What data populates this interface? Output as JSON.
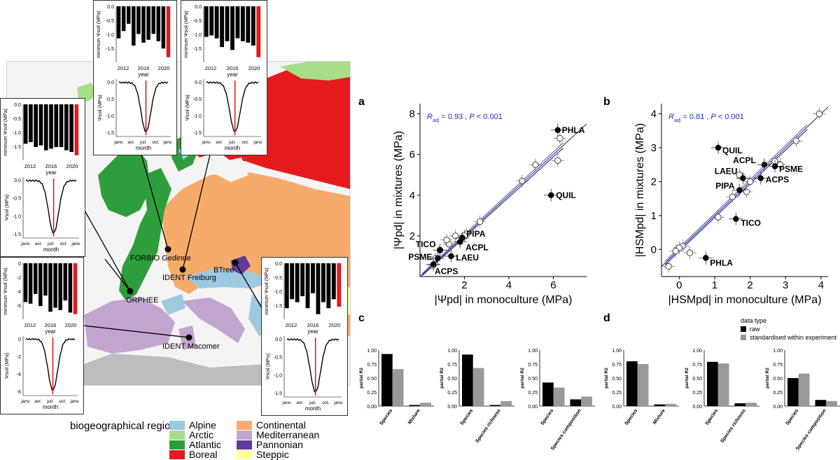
{
  "panels": {
    "a": "a",
    "b": "b",
    "c": "c",
    "d": "d"
  },
  "map": {
    "sites": [
      "ORPHEE",
      "FORBIO Gedinne",
      "IDENT Freiburg",
      "BTree",
      "IDENT Macomer"
    ],
    "legend_title": "biogeographical region",
    "regions": [
      {
        "name": "Alpine",
        "color": "#9ecae1"
      },
      {
        "name": "Arctic",
        "color": "#a8dd8a"
      },
      {
        "name": "Atlantic",
        "color": "#2e9e3c"
      },
      {
        "name": "Boreal",
        "color": "#e41a1c"
      },
      {
        "name": "Steppic",
        "color": "#ffff99"
      },
      {
        "name": "Continental",
        "color": "#f7ab6a"
      },
      {
        "name": "Mediterranean",
        "color": "#c2a5cf"
      },
      {
        "name": "Pannonian",
        "color": "#5e3c99"
      }
    ]
  },
  "insets": {
    "bar_ylabel": "minimum Ψsoil (MPa)",
    "bar_xlabel": "year",
    "line_ylabel": "Ψsoil (MPa)",
    "line_xlabel": "month",
    "years": [
      "2012",
      "2016",
      "2020"
    ],
    "months": [
      "janv.",
      "avr.",
      "juil.",
      "oct.",
      "janv."
    ],
    "items": [
      {
        "id": "gedinne",
        "bar_ticks": [
          "0.0",
          "-0.5",
          "-1.0",
          "-1.5"
        ],
        "bars": [
          -1.1,
          -0.85,
          -0.6,
          -1.35,
          -0.95,
          -1.25,
          -1.15,
          -0.95,
          -1.2,
          -1.45,
          -1.75
        ],
        "line_ticks": [
          "0.0",
          "-0.5",
          "-1.0",
          "-1.5"
        ],
        "line_min": -1.6,
        "line_max": 0.1
      },
      {
        "id": "freiburg",
        "bar_ticks": [
          "0.0",
          "-0.5",
          "-1.0",
          "-1.5"
        ],
        "bars": [
          -1.05,
          -1.0,
          -1.1,
          -1.4,
          -1.2,
          -1.5,
          -1.1,
          -1.2,
          -1.25,
          -1.35,
          -1.75
        ],
        "line_ticks": [
          "0.0",
          "-0.5",
          "-1.0",
          "-1.5"
        ],
        "line_min": -1.7,
        "line_max": 0.1
      },
      {
        "id": "orphee",
        "bar_ticks": [
          "0.0",
          "-0.5",
          "-1.0",
          "-1.5"
        ],
        "bars": [
          -1.2,
          -1.15,
          -1.3,
          -1.25,
          -1.4,
          -1.35,
          -1.3,
          -1.3,
          -1.4,
          -1.45,
          -1.55
        ],
        "line_ticks": [
          "0.0",
          "-0.5",
          "-1.0",
          "-1.5"
        ],
        "line_min": -1.6,
        "line_max": 0.1
      },
      {
        "id": "macomer",
        "bar_ticks": [
          "0",
          "-2",
          "-4",
          "-6"
        ],
        "bars": [
          -4.8,
          -5.0,
          -3.8,
          -5.3,
          -4.0,
          -6.0,
          -5.5,
          -5.8,
          -4.6,
          -6.1,
          -6.3
        ],
        "line_ticks": [
          "0",
          "-2",
          "-4",
          "-6"
        ],
        "line_min": -7,
        "line_max": 0.5
      },
      {
        "id": "btree",
        "bar_ticks": [
          "0.0",
          "-0.5",
          "-1.0",
          "-1.5"
        ],
        "bars": [
          -1.5,
          -1.2,
          -1.3,
          -1.1,
          -1.5,
          -1.0,
          -1.7,
          -1.3,
          -1.5,
          -1.2,
          -1.45
        ],
        "line_ticks": [
          "0.0",
          "-0.5",
          "-1.0",
          "-1.5"
        ],
        "line_min": -1.8,
        "line_max": 0.1
      }
    ]
  },
  "chart_data": [
    {
      "panel": "a",
      "type": "scatter",
      "xlabel": "|Ψpd| in monoculture (MPa)",
      "ylabel": "|Ψpd| in mixtures (MPa)",
      "xlim": [
        0,
        7.5
      ],
      "ylim": [
        0,
        8.5
      ],
      "xticks": [
        "2",
        "4",
        "6"
      ],
      "yticks": [
        "2",
        "4",
        "6",
        "8"
      ],
      "annotation_r2": "= 0.93 ,",
      "annotation_p": "< 0.001",
      "labeled_points": [
        {
          "label": "PHLA",
          "x": 6.2,
          "y": 7.2,
          "filled": true
        },
        {
          "label": "QUIL",
          "x": 5.9,
          "y": 4.0,
          "filled": true
        },
        {
          "label": "TICO",
          "x": 0.9,
          "y": 1.3,
          "filled": true
        },
        {
          "label": "PIPA",
          "x": 1.9,
          "y": 1.9,
          "filled": true
        },
        {
          "label": "ACPL",
          "x": 1.8,
          "y": 1.7,
          "filled": true
        },
        {
          "label": "PSME",
          "x": 0.8,
          "y": 0.9,
          "filled": true
        },
        {
          "label": "LAEU",
          "x": 1.4,
          "y": 1.0,
          "filled": true
        },
        {
          "label": "ACPS",
          "x": 0.6,
          "y": 0.6,
          "filled": true
        }
      ],
      "open_points": [
        [
          6.3,
          6.8
        ],
        [
          6.2,
          5.7
        ],
        [
          5.2,
          5.5
        ],
        [
          4.6,
          4.7
        ],
        [
          2.7,
          2.7
        ],
        [
          2.1,
          2.1
        ],
        [
          2.0,
          2.0
        ],
        [
          1.9,
          1.9
        ],
        [
          1.6,
          2.0
        ],
        [
          1.3,
          1.6
        ],
        [
          1.2,
          1.8
        ],
        [
          0.9,
          1.3
        ],
        [
          0.7,
          0.9
        ],
        [
          0.6,
          0.55
        ]
      ]
    },
    {
      "panel": "b",
      "type": "scatter",
      "xlabel": "|HSMpd| in monoculture (MPa)",
      "ylabel": "|HSMpd| in mixtures (MPa)",
      "xlim": [
        -0.5,
        4.2
      ],
      "ylim": [
        -0.8,
        4.3
      ],
      "xticks": [
        "0",
        "1",
        "2",
        "3",
        "4"
      ],
      "yticks": [
        "0",
        "1",
        "2",
        "3",
        "4"
      ],
      "annotation_r2": "= 0.81 ,",
      "annotation_p": "< 0.001",
      "labeled_points": [
        {
          "label": "QUIL",
          "x": 1.1,
          "y": 3.0,
          "filled": true
        },
        {
          "label": "ACPL",
          "x": 2.4,
          "y": 2.5,
          "filled": true
        },
        {
          "label": "PSME",
          "x": 2.7,
          "y": 2.45,
          "filled": true
        },
        {
          "label": "LAEU",
          "x": 1.8,
          "y": 2.1,
          "filled": true
        },
        {
          "label": "ACPS",
          "x": 2.3,
          "y": 2.1,
          "filled": true
        },
        {
          "label": "PIPA",
          "x": 1.7,
          "y": 1.75,
          "filled": true
        },
        {
          "label": "TICO",
          "x": 1.6,
          "y": 0.9,
          "filled": true
        },
        {
          "label": "PHLA",
          "x": 0.75,
          "y": -0.25,
          "filled": true
        }
      ],
      "open_points": [
        [
          3.95,
          4.0
        ],
        [
          3.3,
          3.2
        ],
        [
          2.7,
          2.6
        ],
        [
          2.85,
          2.5
        ],
        [
          2.0,
          2.0
        ],
        [
          1.7,
          2.2
        ],
        [
          1.9,
          1.7
        ],
        [
          1.5,
          1.55
        ],
        [
          1.1,
          0.95
        ],
        [
          0.3,
          -0.1
        ],
        [
          0.1,
          0.1
        ],
        [
          0.0,
          0.05
        ],
        [
          -0.1,
          -0.05
        ],
        [
          -0.3,
          -0.5
        ]
      ]
    },
    {
      "panel": "c",
      "type": "bar",
      "ylabel": "partial R2",
      "legend_title": "data type",
      "legend": [
        {
          "name": "raw",
          "color": "#000000"
        },
        {
          "name": "standardised within experiment",
          "color": "#999999"
        }
      ],
      "yticks": [
        "0.00",
        "0.25",
        "0.50",
        "0.75",
        "1.00"
      ],
      "subplots": [
        {
          "categories": [
            "Species",
            "Mixture"
          ],
          "raw": [
            0.93,
            0.02
          ],
          "std": [
            0.66,
            0.06
          ]
        },
        {
          "categories": [
            "Species",
            "Species richness"
          ],
          "raw": [
            0.92,
            0.02
          ],
          "std": [
            0.68,
            0.09
          ]
        },
        {
          "categories": [
            "Species",
            "Species composition"
          ],
          "raw": [
            0.42,
            0.12
          ],
          "std": [
            0.33,
            0.17
          ]
        }
      ]
    },
    {
      "panel": "d",
      "type": "bar",
      "ylabel": "partial R2",
      "yticks": [
        "0.00",
        "0.25",
        "0.50",
        "0.75",
        "1.00"
      ],
      "subplots": [
        {
          "categories": [
            "Species",
            "Mixture"
          ],
          "raw": [
            0.8,
            0.03
          ],
          "std": [
            0.75,
            0.04
          ]
        },
        {
          "categories": [
            "Species",
            "Species richness"
          ],
          "raw": [
            0.79,
            0.05
          ],
          "std": [
            0.76,
            0.06
          ]
        },
        {
          "categories": [
            "Species",
            "Species composition"
          ],
          "raw": [
            0.5,
            0.11
          ],
          "std": [
            0.58,
            0.09
          ]
        }
      ]
    }
  ]
}
